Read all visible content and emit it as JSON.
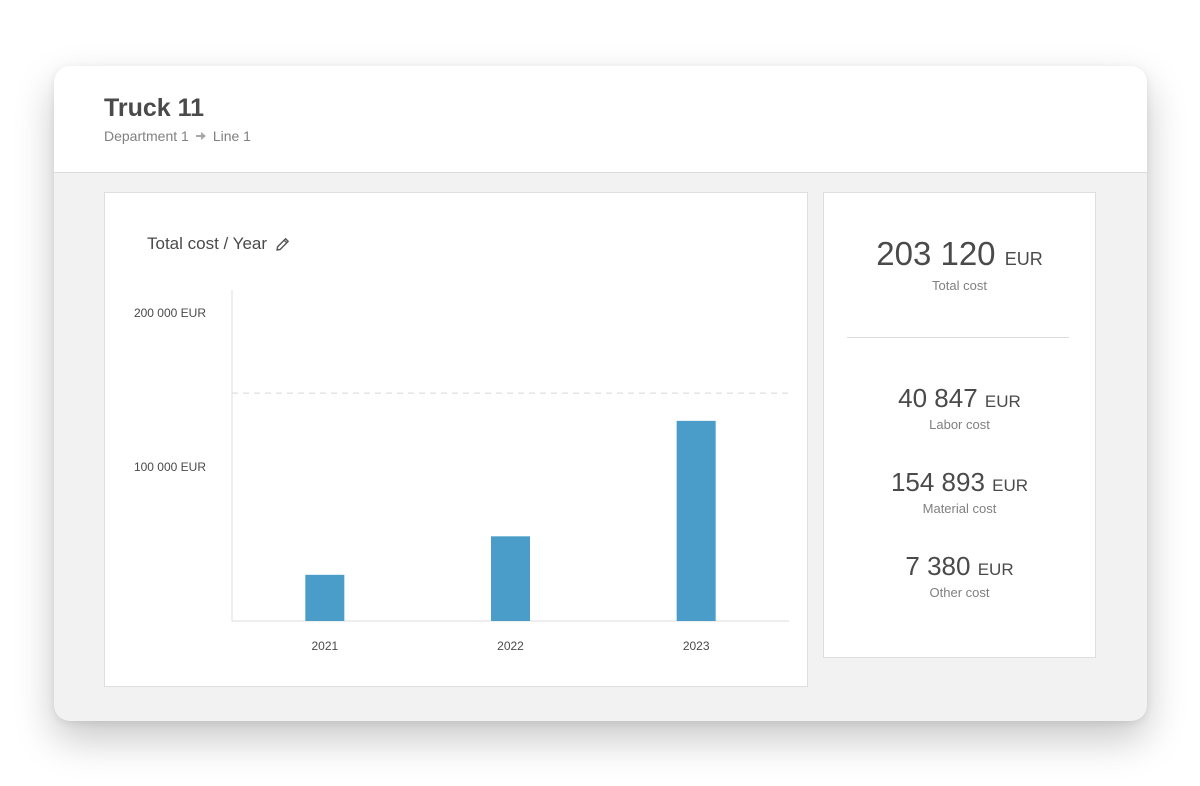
{
  "header": {
    "title": "Truck 11",
    "breadcrumb": [
      "Department 1",
      "Line 1"
    ],
    "breadcrumb_separator_icon": "arrow-right-icon"
  },
  "chart_card": {
    "title": "Total cost / Year",
    "edit_icon": "pencil-icon"
  },
  "chart_data": {
    "type": "bar",
    "title": "Total cost / Year",
    "categories": [
      "2021",
      "2022",
      "2023"
    ],
    "values": [
      30000,
      55000,
      130000
    ],
    "ylim": [
      0,
      215000
    ],
    "y_ticks": [
      {
        "value": 100000,
        "label": "100 000 EUR"
      },
      {
        "value": 200000,
        "label": "200 000 EUR"
      }
    ],
    "reference_line": 148000,
    "xlabel": "",
    "ylabel": "",
    "bar_color": "#4a9cc9",
    "grid": false
  },
  "summary": {
    "total": {
      "value": "203 120",
      "unit": "EUR",
      "label": "Total cost"
    },
    "items": [
      {
        "value": "40 847",
        "unit": "EUR",
        "label": "Labor cost"
      },
      {
        "value": "154 893",
        "unit": "EUR",
        "label": "Material cost"
      },
      {
        "value": "7 380",
        "unit": "EUR",
        "label": "Other cost"
      }
    ]
  },
  "colors": {
    "accent": "#4a9cc9",
    "text": "#4a4a4a",
    "muted": "#808080",
    "background": "#f2f2f2"
  }
}
